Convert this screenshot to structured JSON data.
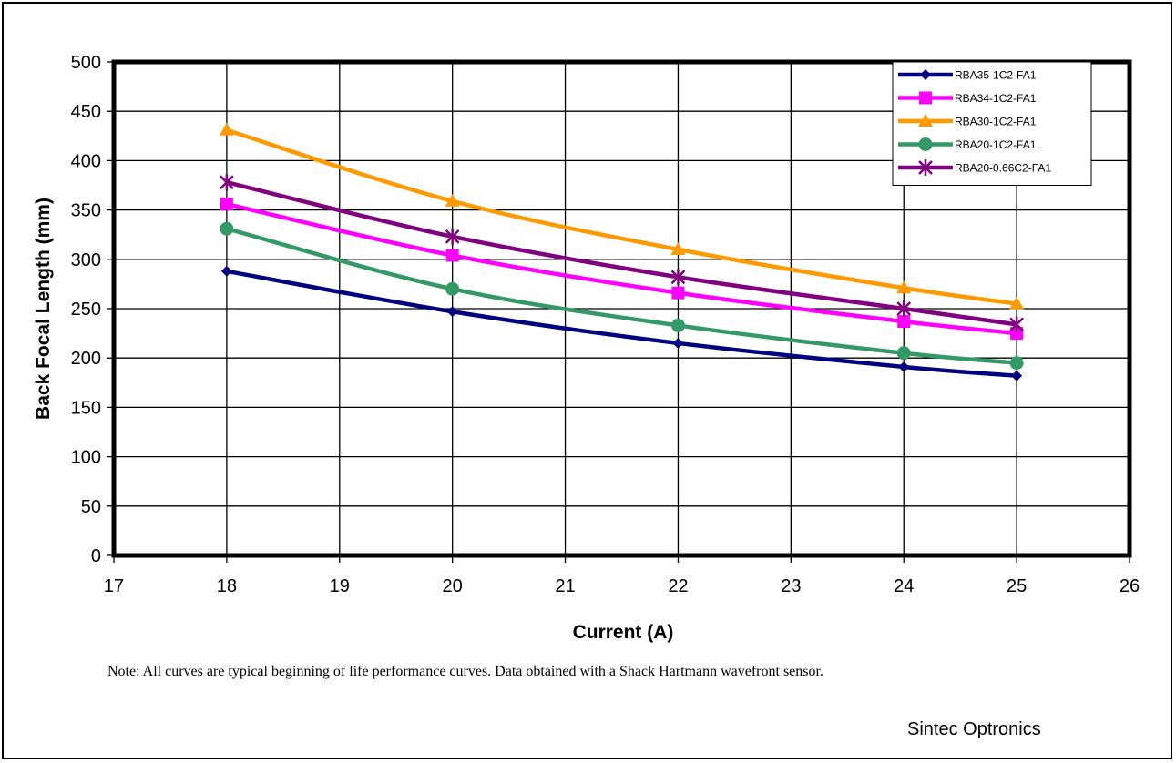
{
  "chart_data": {
    "type": "line",
    "title": "",
    "xlabel": "Current (A)",
    "ylabel": "Back Focal Length (mm)",
    "xlim": [
      17,
      26
    ],
    "ylim": [
      0,
      500
    ],
    "x_ticks": [
      17,
      18,
      19,
      20,
      21,
      22,
      23,
      24,
      25,
      26
    ],
    "y_ticks": [
      0,
      50,
      100,
      150,
      200,
      250,
      300,
      350,
      400,
      450,
      500
    ],
    "grid": true,
    "legend_position": "top-right",
    "x": [
      18,
      20,
      22,
      24,
      25
    ],
    "series": [
      {
        "name": "RBA35-1C2-FA1",
        "values": [
          288,
          247,
          215,
          191,
          182
        ],
        "color": "#000080",
        "marker": "diamond"
      },
      {
        "name": "RBA34-1C2-FA1",
        "values": [
          356,
          304,
          266,
          237,
          225
        ],
        "color": "#ff00ff",
        "marker": "square"
      },
      {
        "name": "RBA30-1C2-FA1",
        "values": [
          431,
          359,
          310,
          271,
          255
        ],
        "color": "#ff9900",
        "marker": "triangle"
      },
      {
        "name": "RBA20-1C2-FA1",
        "values": [
          331,
          270,
          233,
          205,
          195
        ],
        "color": "#339966",
        "marker": "circle"
      },
      {
        "name": "RBA20-0.66C2-FA1",
        "values": [
          378,
          323,
          282,
          250,
          234
        ],
        "color": "#800080",
        "marker": "star"
      }
    ]
  },
  "note": "Note: All curves are typical beginning of life performance curves.  Data obtained with a Shack Hartmann wavefront sensor.",
  "company": "Sintec Optronics"
}
